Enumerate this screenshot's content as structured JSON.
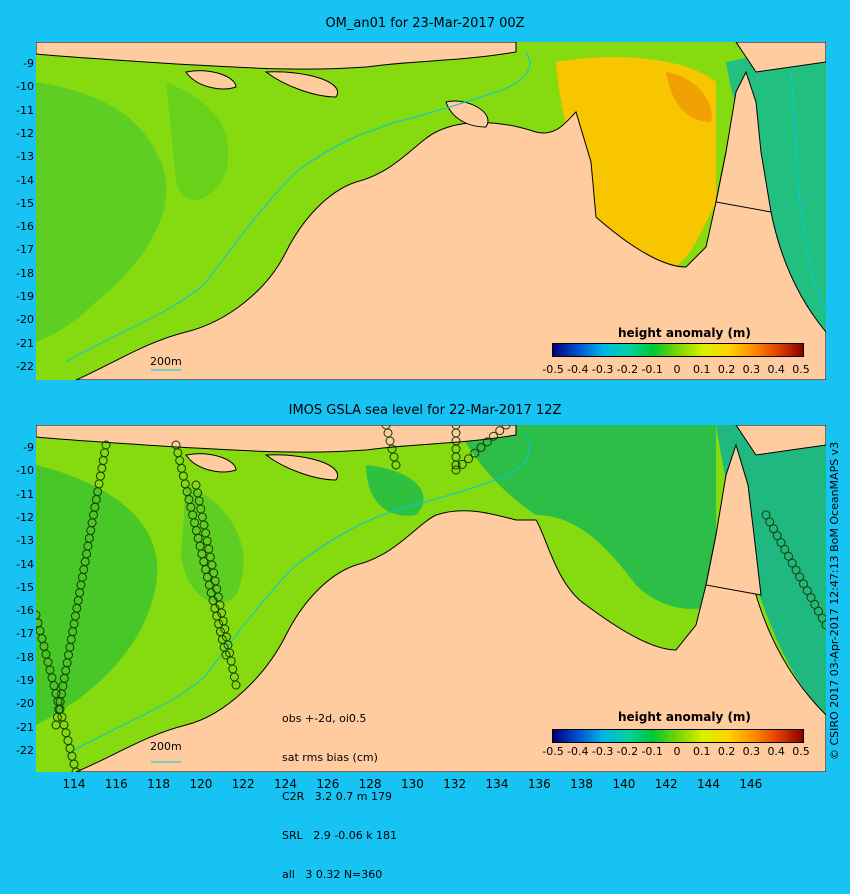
{
  "top": {
    "title": "OM_an01 for 23-Mar-2017 00Z",
    "yticks": [
      "-9",
      "-10",
      "-11",
      "-12",
      "-13",
      "-14",
      "-15",
      "-16",
      "-17",
      "-18",
      "-19",
      "-20",
      "-21",
      "-22"
    ],
    "scale_label": "200m",
    "legend_title": "height anomaly (m)"
  },
  "bottom": {
    "title": "IMOS GSLA sea level  for 22-Mar-2017 12Z",
    "yticks": [
      "-9",
      "-10",
      "-11",
      "-12",
      "-13",
      "-14",
      "-15",
      "-16",
      "-17",
      "-18",
      "-19",
      "-20",
      "-21",
      "-22"
    ],
    "scale_label": "200m",
    "legend_title": "height anomaly (m)",
    "stats": [
      "obs +-2d, oi0.5",
      "sat rms bias (cm)",
      "C2R   3.2 0.7 m 179",
      "SRL   2.9 -0.06 k 181",
      "all   3 0.32 N=360"
    ]
  },
  "colorbar_ticks": [
    "-0.5",
    "-0.4",
    "-0.3",
    "-0.2",
    "-0.1",
    "0",
    "0.1",
    "0.2",
    "0.3",
    "0.4",
    "0.5"
  ],
  "xticks": [
    "114",
    "116",
    "118",
    "120",
    "122",
    "124",
    "126",
    "128",
    "130",
    "132",
    "134",
    "136",
    "138",
    "140",
    "142",
    "144",
    "146"
  ],
  "credit": "© CSIRO 2017  03-Apr-2017 12:47:13 BoM OceanMAPS v3",
  "colors": {
    "background": "#16c3f2",
    "land": "#ffcca0",
    "ocean_green": "#7ad600",
    "coast": "#000000"
  }
}
